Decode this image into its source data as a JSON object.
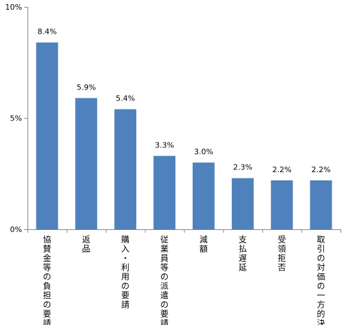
{
  "chart_data": {
    "type": "bar",
    "title": "",
    "xlabel": "",
    "ylabel": "",
    "ylim": [
      0,
      10
    ],
    "y_ticks": [
      "0%",
      "5%",
      "10%"
    ],
    "grid": false,
    "legend": "none",
    "bar_color": "#4F81BD",
    "categories": [
      "協賛金等の負担の要請",
      "返品",
      "購入・利用の要請",
      "従業員等の派遣の要請",
      "減額",
      "支払遅延",
      "受領拒否",
      "取引の対価の一方的決定"
    ],
    "values": [
      8.4,
      5.9,
      5.4,
      3.3,
      3.0,
      2.3,
      2.2,
      2.2
    ],
    "value_labels": [
      "8.4%",
      "5.9%",
      "5.4%",
      "3.3%",
      "3.0%",
      "2.3%",
      "2.2%",
      "2.2%"
    ]
  }
}
